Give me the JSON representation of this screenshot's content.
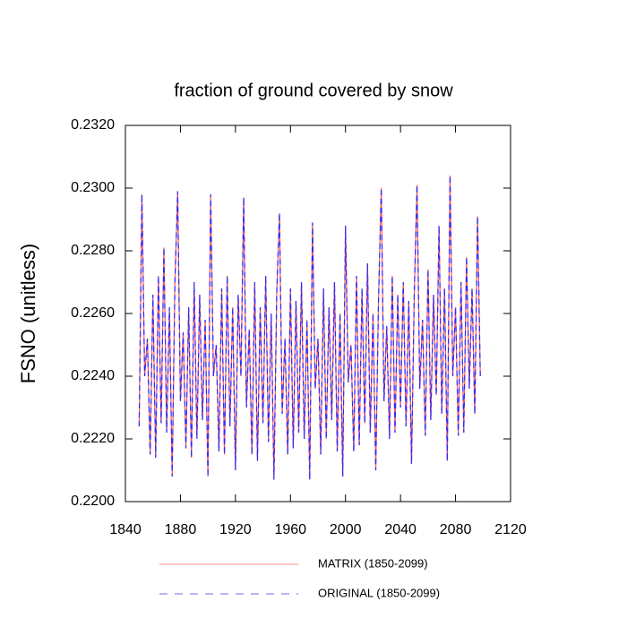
{
  "chart_data": {
    "type": "line",
    "title": "fraction of ground covered by snow",
    "y_label": "FSNO  (unitless)",
    "xlim": [
      1840,
      2120
    ],
    "xticks": [
      1840,
      1880,
      1920,
      1960,
      2000,
      2040,
      2080,
      2120
    ],
    "ylim": [
      0.22,
      0.232
    ],
    "yticks": [
      {
        "value": 0.22,
        "label": "0.2200"
      },
      {
        "value": 0.222,
        "label": "0.2220"
      },
      {
        "value": 0.224,
        "label": "0.2240"
      },
      {
        "value": 0.226,
        "label": "0.2260"
      },
      {
        "value": 0.228,
        "label": "0.2280"
      },
      {
        "value": 0.23,
        "label": "0.2300"
      },
      {
        "value": 0.232,
        "label": "0.2320"
      }
    ],
    "x": [
      1850,
      1852,
      1854,
      1856,
      1858,
      1860,
      1862,
      1864,
      1866,
      1868,
      1870,
      1872,
      1874,
      1876,
      1878,
      1880,
      1882,
      1884,
      1886,
      1888,
      1890,
      1892,
      1894,
      1896,
      1898,
      1900,
      1902,
      1904,
      1906,
      1908,
      1910,
      1912,
      1914,
      1916,
      1918,
      1920,
      1922,
      1924,
      1926,
      1928,
      1930,
      1932,
      1934,
      1936,
      1938,
      1940,
      1942,
      1944,
      1946,
      1948,
      1950,
      1952,
      1954,
      1956,
      1958,
      1960,
      1962,
      1964,
      1966,
      1968,
      1970,
      1972,
      1974,
      1976,
      1978,
      1980,
      1982,
      1984,
      1986,
      1988,
      1990,
      1992,
      1994,
      1996,
      1998,
      2000,
      2002,
      2004,
      2006,
      2008,
      2010,
      2012,
      2014,
      2016,
      2018,
      2020,
      2022,
      2024,
      2026,
      2028,
      2030,
      2032,
      2034,
      2036,
      2038,
      2040,
      2042,
      2044,
      2046,
      2048,
      2050,
      2052,
      2054,
      2056,
      2058,
      2060,
      2062,
      2064,
      2066,
      2068,
      2070,
      2072,
      2074,
      2076,
      2078,
      2080,
      2082,
      2084,
      2086,
      2088,
      2090,
      2092,
      2094,
      2096,
      2098
    ],
    "series": [
      {
        "name": "MATRIX (1850-2099)",
        "color": "#ff5a5a",
        "dashed": false,
        "values": [
          0.2224,
          0.2298,
          0.224,
          0.2252,
          0.2215,
          0.2266,
          0.2214,
          0.2272,
          0.2225,
          0.2281,
          0.2222,
          0.2262,
          0.2208,
          0.227,
          0.2299,
          0.2232,
          0.2254,
          0.2217,
          0.2262,
          0.2214,
          0.227,
          0.222,
          0.2266,
          0.2226,
          0.2258,
          0.2208,
          0.2298,
          0.224,
          0.225,
          0.2216,
          0.2268,
          0.2215,
          0.2272,
          0.2224,
          0.2262,
          0.221,
          0.2266,
          0.224,
          0.2297,
          0.223,
          0.2255,
          0.2215,
          0.227,
          0.2213,
          0.2262,
          0.2225,
          0.2272,
          0.2219,
          0.226,
          0.2207,
          0.2266,
          0.2292,
          0.2228,
          0.2252,
          0.2215,
          0.2268,
          0.2217,
          0.2264,
          0.2222,
          0.227,
          0.222,
          0.2258,
          0.2207,
          0.2289,
          0.2236,
          0.2252,
          0.2215,
          0.2268,
          0.222,
          0.2262,
          0.2226,
          0.227,
          0.2216,
          0.226,
          0.2208,
          0.2288,
          0.2238,
          0.225,
          0.2216,
          0.2272,
          0.2218,
          0.2268,
          0.2225,
          0.2276,
          0.2222,
          0.226,
          0.221,
          0.2264,
          0.23,
          0.2232,
          0.2256,
          0.222,
          0.2272,
          0.2222,
          0.2266,
          0.223,
          0.227,
          0.2224,
          0.2264,
          0.2212,
          0.2266,
          0.2301,
          0.2236,
          0.2258,
          0.2221,
          0.2274,
          0.2226,
          0.2266,
          0.2234,
          0.2288,
          0.2228,
          0.2268,
          0.2213,
          0.2304,
          0.224,
          0.2262,
          0.2221,
          0.227,
          0.2222,
          0.2278,
          0.2236,
          0.2268,
          0.2228,
          0.2291,
          0.224
        ]
      },
      {
        "name": "ORIGINAL (1850-2099)",
        "color": "#2b2bff",
        "dashed": true,
        "values": [
          0.2224,
          0.2298,
          0.224,
          0.2252,
          0.2215,
          0.2266,
          0.2214,
          0.2272,
          0.2225,
          0.2281,
          0.2222,
          0.2262,
          0.2208,
          0.227,
          0.2299,
          0.2232,
          0.2254,
          0.2217,
          0.2262,
          0.2214,
          0.227,
          0.222,
          0.2266,
          0.2226,
          0.2258,
          0.2208,
          0.2298,
          0.224,
          0.225,
          0.2216,
          0.2268,
          0.2215,
          0.2272,
          0.2224,
          0.2262,
          0.221,
          0.2266,
          0.224,
          0.2297,
          0.223,
          0.2255,
          0.2215,
          0.227,
          0.2213,
          0.2262,
          0.2225,
          0.2272,
          0.2219,
          0.226,
          0.2207,
          0.2266,
          0.2292,
          0.2228,
          0.2252,
          0.2215,
          0.2268,
          0.2217,
          0.2264,
          0.2222,
          0.227,
          0.222,
          0.2258,
          0.2207,
          0.2289,
          0.2236,
          0.2252,
          0.2215,
          0.2268,
          0.222,
          0.2262,
          0.2226,
          0.227,
          0.2216,
          0.226,
          0.2208,
          0.2288,
          0.2238,
          0.225,
          0.2216,
          0.2272,
          0.2218,
          0.2268,
          0.2225,
          0.2276,
          0.2222,
          0.226,
          0.221,
          0.2264,
          0.23,
          0.2232,
          0.2256,
          0.222,
          0.2272,
          0.2222,
          0.2266,
          0.223,
          0.227,
          0.2224,
          0.2264,
          0.2212,
          0.2266,
          0.2301,
          0.2236,
          0.2258,
          0.2221,
          0.2274,
          0.2226,
          0.2266,
          0.2234,
          0.2288,
          0.2228,
          0.2268,
          0.2213,
          0.2304,
          0.224,
          0.2262,
          0.2221,
          0.227,
          0.2222,
          0.2278,
          0.2236,
          0.2268,
          0.2228,
          0.2291,
          0.224
        ]
      }
    ]
  }
}
